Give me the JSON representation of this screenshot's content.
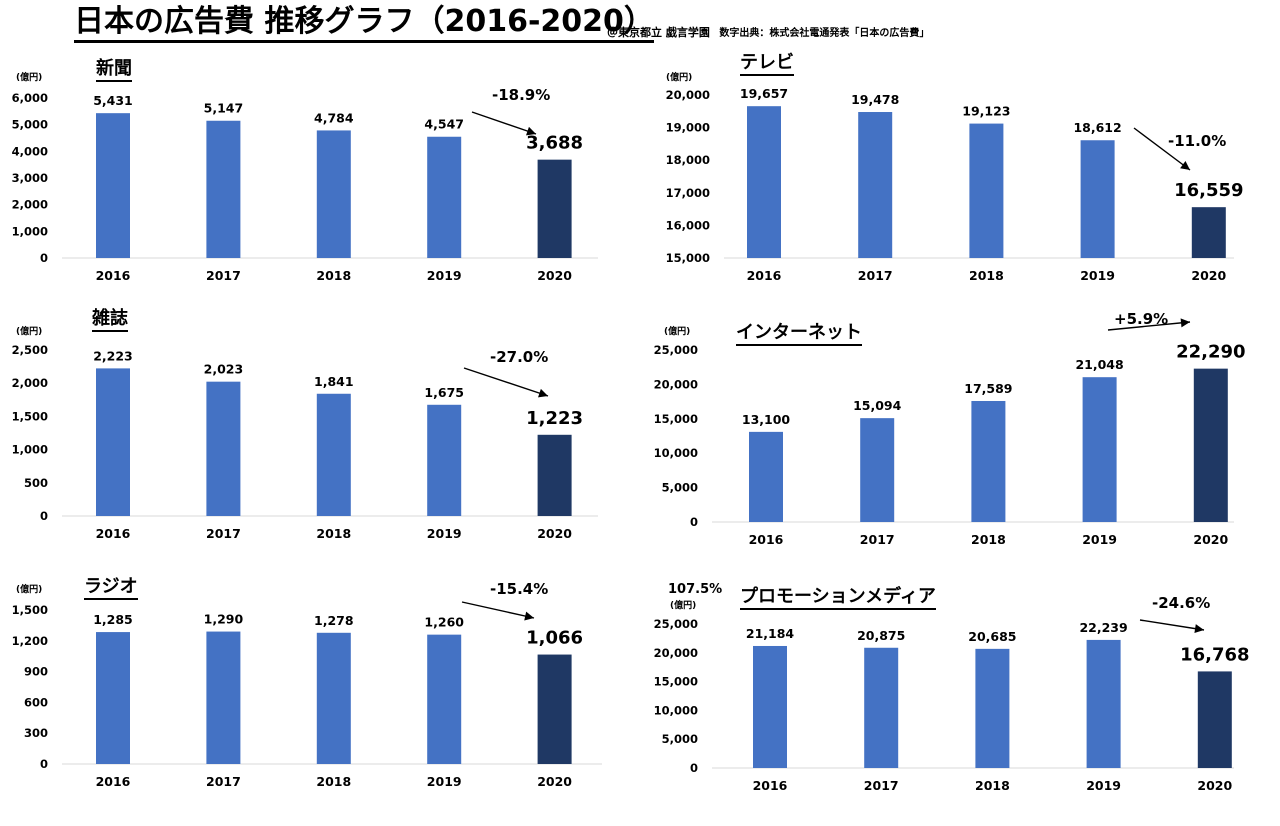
{
  "title": "日本の広告費 推移グラフ（2016-2020）",
  "credit_author": "＠東京都立 戯言学園",
  "credit_source": "数字出典：株式会社電通発表「日本の広告費」",
  "colors": {
    "bar": "#4472C4",
    "highlight": "#1F3864",
    "axis": "#D9D9D9"
  },
  "chart_data": [
    {
      "type": "bar",
      "title": "新聞",
      "unit": "(億円)",
      "categories": [
        "2016",
        "2017",
        "2018",
        "2019",
        "2020"
      ],
      "values": [
        5431,
        5147,
        4784,
        4547,
        3688
      ],
      "value_labels": [
        "5,431",
        "5,147",
        "4,784",
        "4,547",
        "3,688"
      ],
      "ylim": [
        0,
        6000
      ],
      "yticks": [
        "0",
        "1,000",
        "2,000",
        "3,000",
        "4,000",
        "5,000",
        "6,000"
      ],
      "change": "-18.9%"
    },
    {
      "type": "bar",
      "title": "テレビ",
      "unit": "(億円)",
      "categories": [
        "2016",
        "2017",
        "2018",
        "2019",
        "2020"
      ],
      "values": [
        19657,
        19478,
        19123,
        18612,
        16559
      ],
      "value_labels": [
        "19,657",
        "19,478",
        "19,123",
        "18,612",
        "16,559"
      ],
      "ylim": [
        15000,
        20000
      ],
      "yticks": [
        "15,000",
        "16,000",
        "17,000",
        "18,000",
        "19,000",
        "20,000"
      ],
      "change": "-11.0%"
    },
    {
      "type": "bar",
      "title": "雑誌",
      "unit": "(億円)",
      "categories": [
        "2016",
        "2017",
        "2018",
        "2019",
        "2020"
      ],
      "values": [
        2223,
        2023,
        1841,
        1675,
        1223
      ],
      "value_labels": [
        "2,223",
        "2,023",
        "1,841",
        "1,675",
        "1,223"
      ],
      "ylim": [
        0,
        2500
      ],
      "yticks": [
        "0",
        "500",
        "1,000",
        "1,500",
        "2,000",
        "2,500"
      ],
      "change": "-27.0%"
    },
    {
      "type": "bar",
      "title": "インターネット",
      "unit": "(億円)",
      "categories": [
        "2016",
        "2017",
        "2018",
        "2019",
        "2020"
      ],
      "values": [
        13100,
        15094,
        17589,
        21048,
        22290
      ],
      "value_labels": [
        "13,100",
        "15,094",
        "17,589",
        "21,048",
        "22,290"
      ],
      "ylim": [
        0,
        25000
      ],
      "yticks": [
        "0",
        "5,000",
        "10,000",
        "15,000",
        "20,000",
        "25,000"
      ],
      "change": "+5.9%"
    },
    {
      "type": "bar",
      "title": "ラジオ",
      "unit": "(億円)",
      "categories": [
        "2016",
        "2017",
        "2018",
        "2019",
        "2020"
      ],
      "values": [
        1285,
        1290,
        1278,
        1260,
        1066
      ],
      "value_labels": [
        "1,285",
        "1,290",
        "1,278",
        "1,260",
        "1,066"
      ],
      "ylim": [
        0,
        1500
      ],
      "yticks": [
        "0",
        "300",
        "600",
        "900",
        "1,200",
        "1,500"
      ],
      "change": "-15.4%"
    },
    {
      "type": "bar",
      "title": "プロモーションメディア",
      "unit": "(億円)",
      "extra_label": "107.5%",
      "categories": [
        "2016",
        "2017",
        "2018",
        "2019",
        "2020"
      ],
      "values": [
        21184,
        20875,
        20685,
        22239,
        16768
      ],
      "value_labels": [
        "21,184",
        "20,875",
        "20,685",
        "22,239",
        "16,768"
      ],
      "ylim": [
        0,
        25000
      ],
      "yticks": [
        "0",
        "5,000",
        "10,000",
        "15,000",
        "20,000",
        "25,000"
      ],
      "change": "-24.6%"
    }
  ]
}
